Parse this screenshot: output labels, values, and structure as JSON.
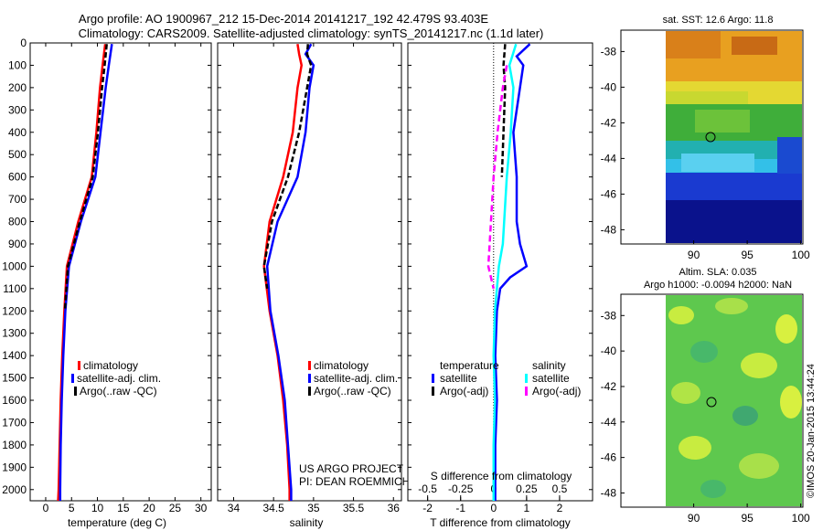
{
  "title_line1": "Argo profile: AO 1900967_212 15-Dec-2014 20141217_192 42.479S 93.403E",
  "title_line2": "Climatology: CARS2009. Satellite-adjusted climatology: synTS_20141217.nc (1.1d later)",
  "credit_line1": "US ARGO PROJECT",
  "credit_line2": "PI: DEAN ROEMMICH",
  "footer": "©IMOS 20-Jan-2015 13:44:24",
  "colors": {
    "climatology": "#ff0000",
    "satellite": "#0000ff",
    "argo": "#000000",
    "sal_satellite": "#00ffff",
    "sal_argo": "#ff00ff"
  },
  "map_sst": {
    "title": "sat. SST: 12.6 Argo: 11.8",
    "ticks_y": [
      "-38",
      "-40",
      "-42",
      "-44",
      "-46",
      "-48"
    ],
    "ticks_x": [
      "90",
      "95",
      "100"
    ]
  },
  "map_sla": {
    "title1": "Altim. SLA: 0.035",
    "title2": "Argo h1000: -0.0094 h2000: NaN",
    "ticks_y": [
      "-38",
      "-40",
      "-42",
      "-44",
      "-46",
      "-48"
    ],
    "ticks_x": [
      "90",
      "95",
      "100"
    ]
  },
  "chart_data": [
    {
      "type": "line",
      "xlabel": "temperature (deg C)",
      "ylabel": "",
      "xlim": [
        -3,
        32
      ],
      "ylim": [
        2050,
        0
      ],
      "x_ticks": [
        "0",
        "5",
        "10",
        "15",
        "20",
        "25",
        "30"
      ],
      "y_ticks": [
        "0",
        "100",
        "200",
        "300",
        "400",
        "500",
        "600",
        "700",
        "800",
        "900",
        "1000",
        "1100",
        "1200",
        "1300",
        "1400",
        "1500",
        "1600",
        "1700",
        "1800",
        "1900",
        "2000"
      ],
      "legend": [
        "climatology",
        "satellite-adj. clim.",
        "Argo(..raw -QC)"
      ],
      "series": [
        {
          "name": "climatology",
          "depth": [
            5,
            100,
            200,
            400,
            600,
            800,
            1000,
            1200,
            1400,
            1600,
            1800,
            2000,
            2050
          ],
          "values": [
            11.5,
            11.0,
            10.5,
            9.8,
            8.9,
            6.3,
            4.1,
            3.6,
            3.2,
            2.9,
            2.7,
            2.5,
            2.4
          ]
        },
        {
          "name": "satellite-adj. clim.",
          "depth": [
            5,
            100,
            200,
            400,
            600,
            800,
            1000,
            1200,
            1400,
            1600,
            1800,
            2000,
            2050
          ],
          "values": [
            12.8,
            12.2,
            11.6,
            10.6,
            9.6,
            6.8,
            4.5,
            3.8,
            3.4,
            3.1,
            2.9,
            2.8,
            2.8
          ]
        },
        {
          "name": "Argo(..raw -QC)",
          "depth": [
            5,
            100,
            200,
            400,
            600,
            800,
            1000,
            1200
          ],
          "values": [
            11.8,
            11.4,
            10.9,
            10.1,
            9.1,
            6.6,
            4.3,
            3.7
          ]
        }
      ]
    },
    {
      "type": "line",
      "xlabel": "salinity",
      "ylabel": "",
      "xlim": [
        33.8,
        36.1
      ],
      "ylim": [
        2050,
        0
      ],
      "x_ticks": [
        "34",
        "34.5",
        "35",
        "35.5",
        "36"
      ],
      "legend": [
        "climatology",
        "satellite-adj. clim.",
        "Argo(..raw -QC)"
      ],
      "series": [
        {
          "name": "climatology",
          "depth": [
            5,
            50,
            100,
            200,
            400,
            600,
            800,
            1000,
            1200,
            1400,
            1600,
            1800,
            2000,
            2050
          ],
          "values": [
            34.8,
            34.82,
            34.85,
            34.8,
            34.74,
            34.62,
            34.45,
            34.38,
            34.45,
            34.55,
            34.62,
            34.67,
            34.7,
            34.7
          ]
        },
        {
          "name": "satellite-adj. clim.",
          "depth": [
            5,
            50,
            100,
            200,
            400,
            600,
            800,
            1000,
            1200,
            1400,
            1600,
            1800,
            2000,
            2050
          ],
          "values": [
            34.97,
            34.9,
            35.0,
            34.95,
            34.9,
            34.8,
            34.55,
            34.42,
            34.46,
            34.56,
            34.64,
            34.68,
            34.72,
            34.72
          ]
        },
        {
          "name": "Argo(..raw -QC)",
          "depth": [
            5,
            50,
            100,
            200,
            400,
            600,
            800,
            1000,
            1100
          ],
          "values": [
            34.93,
            34.92,
            34.97,
            34.92,
            34.82,
            34.68,
            34.48,
            34.38,
            34.42
          ]
        }
      ]
    },
    {
      "type": "line",
      "xlabel": "T difference from climatology",
      "x2label": "S difference from climatology",
      "ylabel": "",
      "xlim": [
        -2.6,
        3.0
      ],
      "ylim": [
        2050,
        0
      ],
      "x_ticks": [
        "-2",
        "-1",
        "0",
        "1",
        "2"
      ],
      "x2_ticks": [
        "-0.5",
        "-0.25",
        "0",
        "0.25",
        "0.5"
      ],
      "legend_titles": [
        "temperature",
        "salinity"
      ],
      "legend": [
        "satellite",
        "Argo(-adj)",
        "satellite",
        "Argo(-adj)"
      ],
      "series": [
        {
          "name": "satellite",
          "group": "temperature",
          "depth": [
            5,
            60,
            100,
            200,
            400,
            600,
            800,
            900,
            1000,
            1050,
            1100,
            1200,
            1400,
            1600,
            1800,
            2000,
            2050
          ],
          "values": [
            1.1,
            0.7,
            0.9,
            0.8,
            0.6,
            0.7,
            0.7,
            0.8,
            1.0,
            0.5,
            0.2,
            0.1,
            0.05,
            0.1,
            0.05,
            0.05,
            0.05
          ]
        },
        {
          "name": "Argo(-adj)",
          "group": "temperature",
          "depth": [
            5,
            100,
            200,
            400,
            600
          ],
          "values": [
            0.35,
            0.3,
            0.35,
            0.3,
            0.25
          ]
        },
        {
          "name": "satellite",
          "group": "salinity",
          "depth": [
            5,
            100,
            200,
            400,
            600,
            800,
            900,
            1000,
            1200,
            1400,
            1600,
            1800,
            2000,
            2050
          ],
          "values": [
            0.17,
            0.12,
            0.15,
            0.13,
            0.1,
            0.08,
            0.07,
            0.04,
            0.01,
            0.0,
            0.01,
            0.0,
            0.0,
            0.0
          ]
        },
        {
          "name": "Argo(-adj)",
          "group": "salinity",
          "depth": [
            100,
            200,
            400,
            600,
            800,
            1000,
            1100
          ],
          "values": [
            0.1,
            0.07,
            0.03,
            0.0,
            -0.02,
            -0.04,
            0.0
          ]
        }
      ]
    }
  ]
}
